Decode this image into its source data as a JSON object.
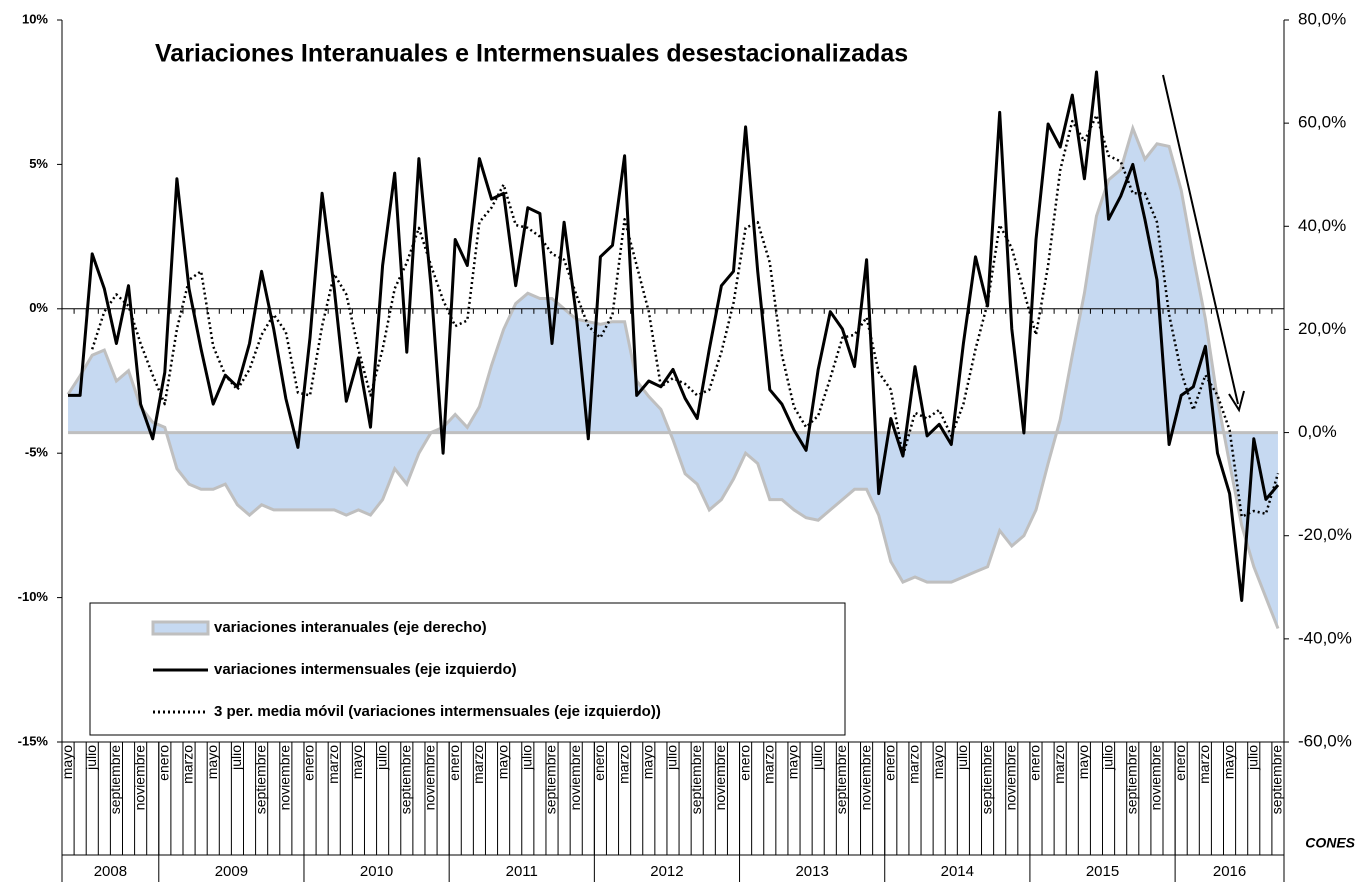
{
  "chart_data": {
    "type": "line",
    "title": "Variaciones Interanuales e Intermensuales desestacionalizadas",
    "source": "CONES",
    "categories": [
      "mayo",
      null,
      "julio",
      null,
      "septiembre",
      null,
      "noviembre",
      null,
      "enero",
      null,
      "marzo",
      null,
      "mayo",
      null,
      "julio",
      null,
      "septiembre",
      null,
      "noviembre",
      null,
      "enero",
      null,
      "marzo",
      null,
      "mayo",
      null,
      "julio",
      null,
      "septiembre",
      null,
      "noviembre",
      null,
      "enero",
      null,
      "marzo",
      null,
      "mayo",
      null,
      "julio",
      null,
      "septiembre",
      null,
      "noviembre",
      null,
      "enero",
      null,
      "marzo",
      null,
      "mayo",
      null,
      "julio",
      null,
      "septiembre",
      null,
      "noviembre",
      null,
      "enero",
      null,
      "marzo",
      null,
      "mayo",
      null,
      "julio",
      null,
      "septiembre",
      null,
      "noviembre",
      null,
      "enero",
      null,
      "marzo",
      null,
      "mayo",
      null,
      "julio",
      null,
      "septiembre",
      null,
      "noviembre",
      null,
      "enero",
      null,
      "marzo",
      null,
      "mayo",
      null,
      "julio",
      null,
      "septiembre",
      null,
      "noviembre",
      null,
      "enero",
      null,
      "marzo",
      null,
      "mayo",
      null,
      "julio",
      null,
      "septiembre"
    ],
    "category_groups": [
      {
        "label": "2008",
        "span": 8
      },
      {
        "label": "2009",
        "span": 12
      },
      {
        "label": "2010",
        "span": 12
      },
      {
        "label": "2011",
        "span": 12
      },
      {
        "label": "2012",
        "span": 12
      },
      {
        "label": "2013",
        "span": 12
      },
      {
        "label": "2014",
        "span": 12
      },
      {
        "label": "2015",
        "span": 12
      },
      {
        "label": "2016",
        "span": 9
      }
    ],
    "ylim": [
      -15,
      10
    ],
    "yticks": [
      {
        "value": -15,
        "label": "-15%"
      },
      {
        "value": -10,
        "label": "-10%"
      },
      {
        "value": -5,
        "label": "-5%"
      },
      {
        "value": 0,
        "label": "0%"
      },
      {
        "value": 5,
        "label": "5%"
      },
      {
        "value": 10,
        "label": "10%"
      }
    ],
    "y2lim": [
      -60,
      80
    ],
    "y2ticks": [
      {
        "value": -60,
        "label": "-60,0%"
      },
      {
        "value": -40,
        "label": "-40,0%"
      },
      {
        "value": -20,
        "label": "-20,0%"
      },
      {
        "value": 0,
        "label": "0,0%"
      },
      {
        "value": 20,
        "label": "20,0%"
      },
      {
        "value": 40,
        "label": "40,0%"
      },
      {
        "value": 60,
        "label": "60,0%"
      },
      {
        "value": 80,
        "label": "80,0%"
      }
    ],
    "legend": "bottom-left",
    "series": [
      {
        "name": "variaciones interanuales (eje derecho)",
        "type": "area",
        "axis": "y2",
        "color": "#c6d9f1",
        "edge_color": "#bfbfbf",
        "values": [
          7.4,
          11,
          15,
          16,
          10,
          12,
          5,
          2,
          1,
          -7,
          -10,
          -11,
          -11,
          -10,
          -14,
          -16,
          -14,
          -15,
          -15,
          -15,
          -15,
          -15,
          -15,
          -16,
          -15,
          -16,
          -13,
          -7,
          -10,
          -4,
          0,
          1,
          3.5,
          1,
          5,
          13,
          20,
          25,
          27,
          26,
          26,
          24,
          22,
          21.5,
          21,
          21.5,
          21.5,
          10,
          7,
          4.5,
          -1.4,
          -8,
          -10,
          -15,
          -13,
          -9,
          -4,
          -6,
          -13,
          -13,
          -15,
          -16.5,
          -17,
          -15,
          -13,
          -11,
          -11,
          -16,
          -25,
          -29,
          -28,
          -29,
          -29,
          -29,
          -28,
          -27,
          -26,
          -19,
          -22,
          -20,
          -15,
          -6,
          2.5,
          15,
          27,
          42,
          49,
          51,
          59,
          53,
          56,
          55.5,
          47,
          34,
          22,
          6.4,
          -6,
          -18,
          -26,
          -32,
          -38
        ]
      },
      {
        "name": "variaciones intermensuales (eje izquierdo)",
        "type": "line",
        "color": "#000000",
        "values": [
          -3.0,
          -3.0,
          1.9,
          0.7,
          -1.2,
          0.8,
          -3.3,
          -4.5,
          -2.2,
          4.5,
          0.7,
          -1.4,
          -3.3,
          -2.3,
          -2.7,
          -1.2,
          1.3,
          -0.7,
          -3.1,
          -4.8,
          -1.0,
          4.0,
          0.7,
          -3.2,
          -1.7,
          -4.1,
          1.5,
          4.7,
          -1.5,
          5.2,
          0.8,
          -5.0,
          2.4,
          1.5,
          5.2,
          3.8,
          4.0,
          0.8,
          3.5,
          3.3,
          -1.2,
          3.0,
          -0.2,
          -4.5,
          1.8,
          2.2,
          5.3,
          -3.0,
          -2.5,
          -2.7,
          -2.1,
          -3.1,
          -3.8,
          -1.4,
          0.8,
          1.3,
          6.3,
          1.3,
          -2.8,
          -3.3,
          -4.2,
          -4.9,
          -2.1,
          -0.1,
          -0.7,
          -2.0,
          1.7,
          -6.4,
          -3.8,
          -5.1,
          -2.0,
          -4.4,
          -4.0,
          -4.7,
          -1.2,
          1.8,
          0.1,
          6.8,
          -0.7,
          -4.3,
          2.4,
          6.4,
          5.6,
          7.4,
          4.5,
          8.2,
          3.1,
          3.9,
          5.0,
          3.1,
          1.0,
          -4.7,
          -3.0,
          -2.7,
          -1.3,
          -5.0,
          -6.4,
          -10.1,
          -4.5,
          -6.6,
          -6.1
        ]
      },
      {
        "name": "3 per. media móvil (variaciones intermensuales (eje izquierdo))",
        "type": "dotted",
        "color": "#000000",
        "values": [
          null,
          null,
          -1.4,
          -0.1,
          0.5,
          0.1,
          -1.2,
          -2.3,
          -3.3,
          -0.7,
          1.0,
          1.3,
          -1.3,
          -2.3,
          -2.8,
          -2.1,
          -0.9,
          -0.2,
          -0.8,
          -2.9,
          -3.0,
          -0.6,
          1.2,
          0.5,
          -1.4,
          -3.0,
          -1.4,
          0.7,
          1.6,
          2.8,
          1.5,
          0.3,
          -0.6,
          -0.4,
          3.0,
          3.5,
          4.3,
          2.9,
          2.8,
          2.5,
          1.9,
          1.7,
          0.5,
          -0.6,
          -1.0,
          -0.2,
          3.1,
          1.5,
          -0.1,
          -2.7,
          -2.4,
          -2.6,
          -3.0,
          -2.8,
          -1.5,
          0.2,
          2.8,
          3.0,
          1.6,
          -1.6,
          -3.4,
          -4.1,
          -3.7,
          -2.4,
          -1.0,
          -0.9,
          -0.3,
          -2.2,
          -2.8,
          -5.1,
          -3.6,
          -3.8,
          -3.5,
          -4.4,
          -3.3,
          -1.4,
          0.2,
          2.9,
          2.1,
          0.6,
          -0.9,
          1.5,
          4.8,
          6.5,
          5.8,
          6.7,
          5.3,
          5.1,
          4.0,
          4.0,
          3.0,
          -0.2,
          -2.2,
          -3.5,
          -2.3,
          -3.0,
          -4.2,
          -7.2,
          -7.0,
          -7.1,
          -5.7
        ]
      }
    ]
  }
}
